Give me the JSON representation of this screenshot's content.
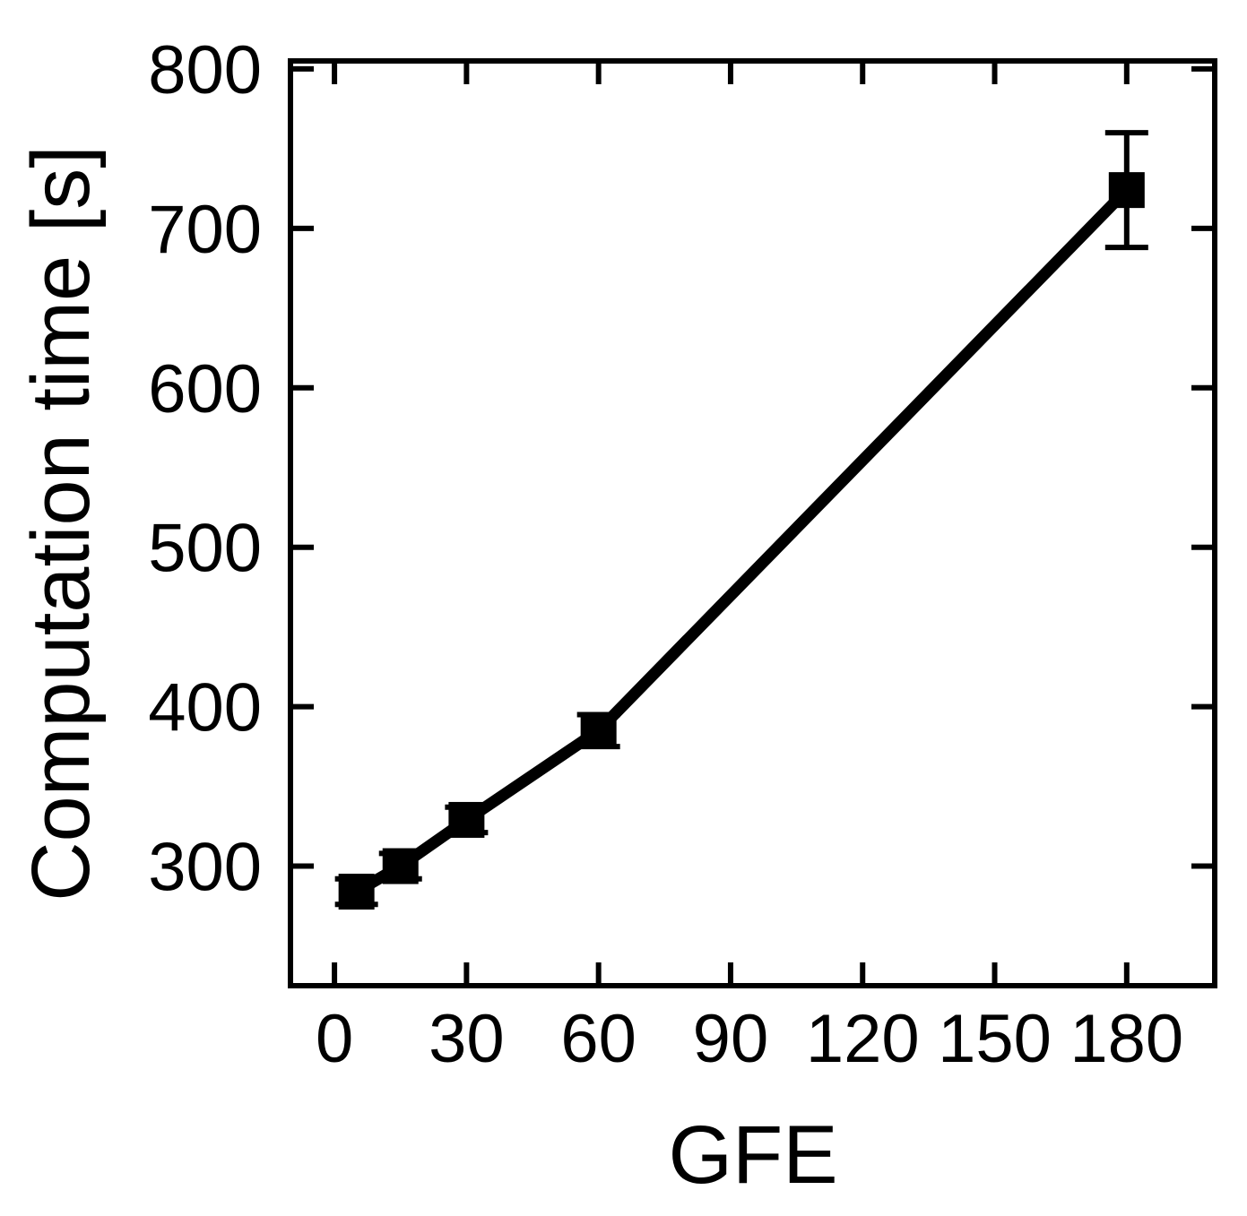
{
  "chart_data": {
    "type": "line",
    "title": "",
    "xlabel": "GFE",
    "ylabel": "Computation time [s]",
    "xlim": [
      -10,
      200
    ],
    "ylim": [
      225,
      805
    ],
    "x_ticks": [
      0,
      30,
      60,
      90,
      120,
      150,
      180
    ],
    "y_ticks": [
      300,
      400,
      500,
      600,
      700,
      800
    ],
    "x_tick_labels": [
      "0",
      "30",
      "60",
      "90",
      "120",
      "150",
      "180"
    ],
    "y_tick_labels": [
      "300",
      "400",
      "500",
      "600",
      "700",
      "800"
    ],
    "grid": false,
    "legend": "none",
    "series": [
      {
        "x": [
          5,
          15,
          30,
          60,
          180
        ],
        "y": [
          284,
          300,
          329,
          385,
          724
        ],
        "error": [
          8,
          8,
          8,
          10,
          36
        ],
        "color": "#000000",
        "marker": "square"
      }
    ]
  }
}
